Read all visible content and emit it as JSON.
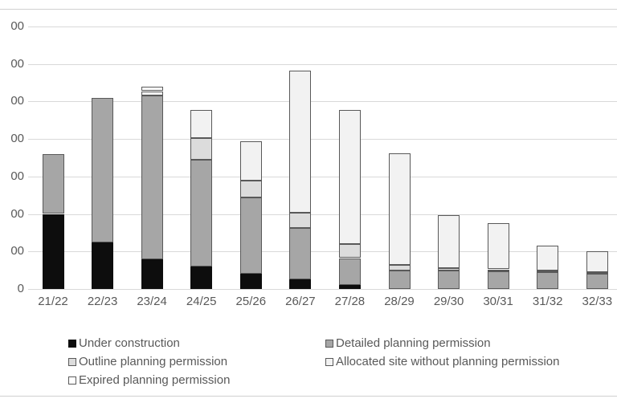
{
  "chart_data": {
    "type": "bar",
    "stacked": true,
    "title": "",
    "xlabel": "",
    "ylabel": "",
    "categories": [
      "21/22",
      "22/23",
      "23/24",
      "24/25",
      "25/26",
      "26/27",
      "27/28",
      "28/29",
      "29/30",
      "30/31",
      "31/32",
      "32/33"
    ],
    "series": [
      {
        "name": "Under construction",
        "color": "#0d0d0d",
        "values": [
          2000,
          1250,
          800,
          600,
          400,
          250,
          100,
          0,
          0,
          0,
          0,
          0
        ]
      },
      {
        "name": "Detailed planning permission",
        "color": "#a6a6a6",
        "values": [
          1600,
          3850,
          4350,
          2850,
          2050,
          1375,
          725,
          500,
          500,
          475,
          450,
          400
        ]
      },
      {
        "name": "Outline planning permission",
        "color": "#dcdcdc",
        "values": [
          0,
          0,
          0,
          575,
          450,
          400,
          375,
          150,
          50,
          50,
          50,
          50
        ]
      },
      {
        "name": "Allocated site without planning permission",
        "color": "#f2f2f2",
        "values": [
          0,
          0,
          125,
          750,
          1050,
          3800,
          3575,
          2975,
          1425,
          1225,
          650,
          550
        ]
      },
      {
        "name": "Expired planning permission",
        "color": "#ffffff",
        "values": [
          0,
          0,
          125,
          0,
          0,
          0,
          0,
          0,
          0,
          0,
          0,
          0
        ]
      }
    ],
    "y_axis": {
      "displayed_tick_labels_bottom_to_top": [
        "0",
        "00",
        "00",
        "00",
        "00",
        "00",
        "00",
        "00"
      ],
      "ylim": [
        0,
        7000
      ],
      "gridline_interval": 1000,
      "grid": true
    },
    "legend": {
      "position": "bottom",
      "columns": 2
    }
  },
  "colors": {
    "background": "#ffffff",
    "gridline": "#d9d9d9",
    "axis_text": "#595959",
    "segment_border": "#595959",
    "page_rule": "#d0d0d0"
  }
}
